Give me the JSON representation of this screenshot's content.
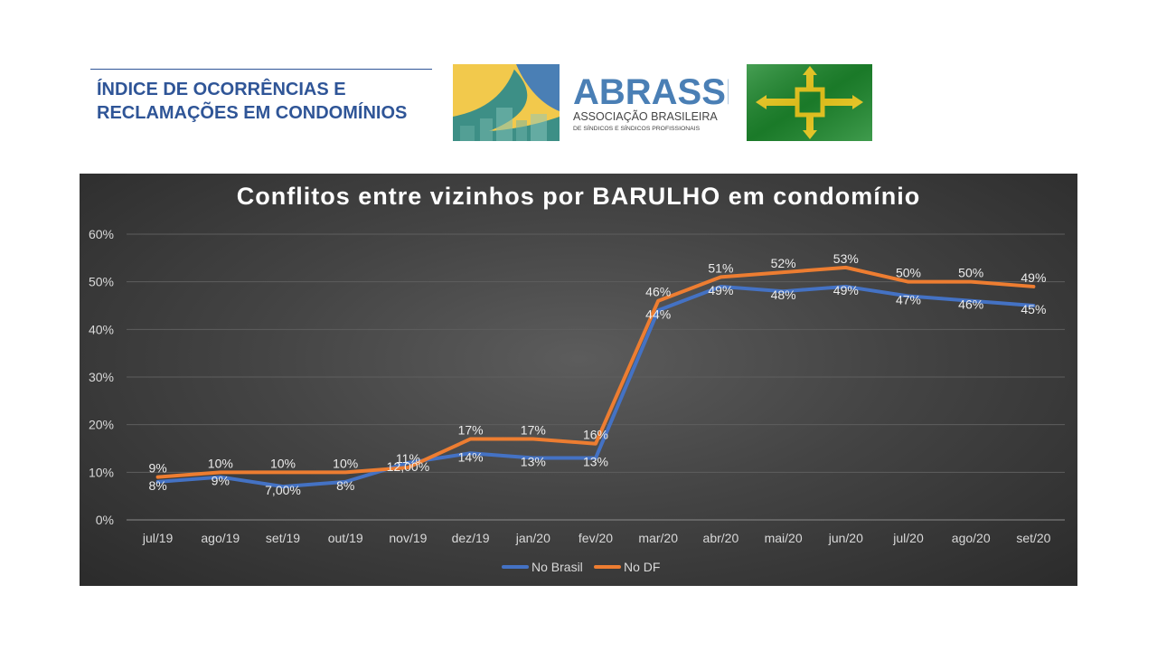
{
  "header": {
    "title_line1": "ÍNDICE DE OCORRÊNCIAS E",
    "title_line2": "RECLAMAÇÕES EM CONDOMÍNIOS"
  },
  "logo": {
    "name": "ABRASSP",
    "tagline1": "ASSOCIAÇÃO BRASILEIRA",
    "tagline2": "DE SÍNDICOS E SÍNDICOS PROFISSIONAIS"
  },
  "colors": {
    "brand_blue": "#2f5597",
    "series_brasil": "#4472c4",
    "series_df": "#ed7d31",
    "flag_green": "#1e8a2e",
    "flag_yellow": "#f6d21e"
  },
  "chart_data": {
    "type": "line",
    "title": "Conflitos entre vizinhos por BARULHO em condomínio",
    "categories": [
      "jul/19",
      "ago/19",
      "set/19",
      "out/19",
      "nov/19",
      "dez/19",
      "jan/20",
      "fev/20",
      "mar/20",
      "abr/20",
      "mai/20",
      "jun/20",
      "jul/20",
      "ago/20",
      "set/20"
    ],
    "yticks": [
      "0%",
      "10%",
      "20%",
      "30%",
      "40%",
      "50%",
      "60%"
    ],
    "ylim": [
      0,
      60
    ],
    "grid": true,
    "legend_position": "bottom",
    "series": [
      {
        "name": "No Brasil",
        "values": [
          8,
          9,
          7,
          8,
          12,
          14,
          13,
          13,
          44,
          49,
          48,
          49,
          47,
          46,
          45
        ],
        "labels": [
          "8%",
          "9%",
          "7,00%",
          "8%",
          "12,00%",
          "14%",
          "13%",
          "13%",
          "44%",
          "49%",
          "48%",
          "49%",
          "47%",
          "46%",
          "45%"
        ]
      },
      {
        "name": "No DF",
        "values": [
          9,
          10,
          10,
          10,
          11,
          17,
          17,
          16,
          46,
          51,
          52,
          53,
          50,
          50,
          49
        ],
        "labels": [
          "9%",
          "10%",
          "10%",
          "10%",
          "11%",
          "17%",
          "17%",
          "16%",
          "46%",
          "51%",
          "52%",
          "53%",
          "50%",
          "50%",
          "49%"
        ]
      }
    ]
  }
}
